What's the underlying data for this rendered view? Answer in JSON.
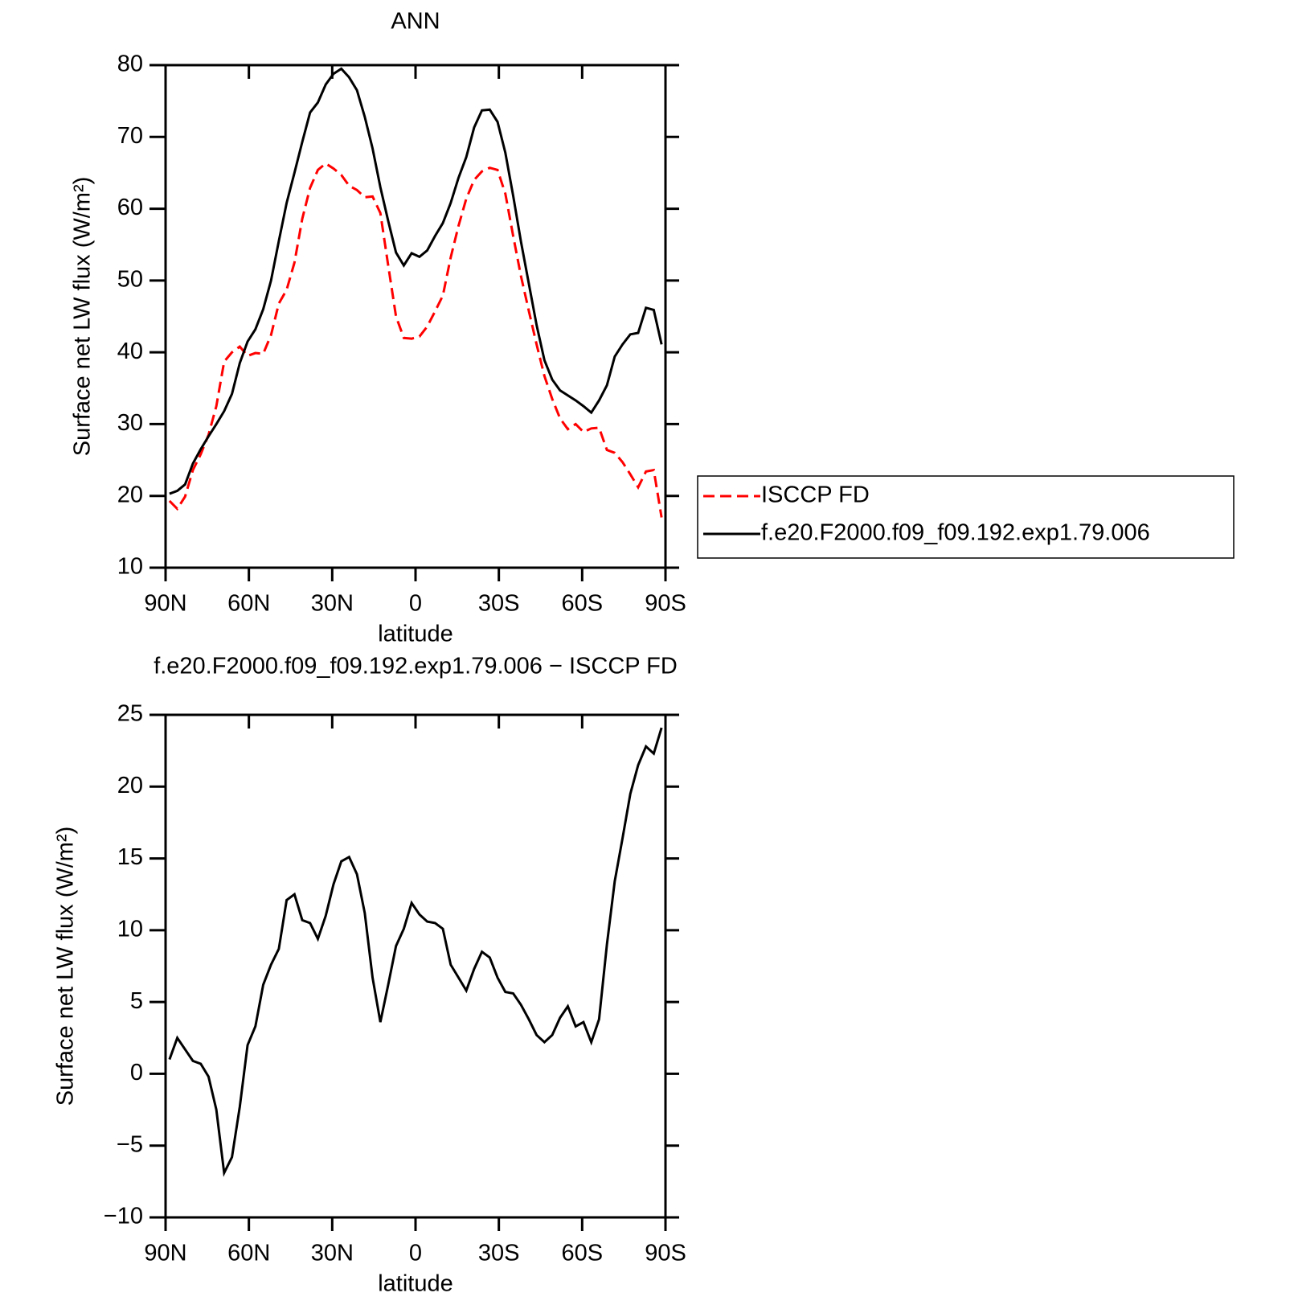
{
  "chart_data": [
    {
      "type": "line",
      "title": "ANN",
      "xlabel": "latitude",
      "ylabel": "Surface net LW flux (W/m²)",
      "x": [
        88.59,
        85.78,
        82.97,
        80.16,
        77.34,
        74.53,
        71.72,
        68.91,
        66.09,
        63.28,
        60.47,
        57.66,
        54.84,
        52.03,
        49.22,
        46.41,
        43.59,
        40.78,
        37.97,
        35.16,
        32.34,
        29.53,
        26.72,
        23.91,
        21.09,
        18.28,
        15.47,
        12.66,
        9.84,
        7.03,
        4.22,
        1.41,
        -1.41,
        -4.22,
        -7.03,
        -9.84,
        -12.66,
        -15.47,
        -18.28,
        -21.09,
        -23.91,
        -26.72,
        -29.53,
        -32.34,
        -35.16,
        -37.97,
        -40.78,
        -43.59,
        -46.41,
        -49.22,
        -52.03,
        -54.84,
        -57.66,
        -60.47,
        -63.28,
        -66.09,
        -68.91,
        -71.72,
        -74.53,
        -77.34,
        -80.16,
        -82.97,
        -85.78,
        -88.59
      ],
      "xlim": [
        90,
        -90
      ],
      "xticks": [
        {
          "value": 90,
          "label": "90N"
        },
        {
          "value": 60,
          "label": "60N"
        },
        {
          "value": 30,
          "label": "30N"
        },
        0,
        {
          "value": -30,
          "label": "30S"
        },
        {
          "value": -60,
          "label": "60S"
        },
        {
          "value": -90,
          "label": "90S"
        }
      ],
      "ylim": [
        10,
        80
      ],
      "yticks": [
        10,
        20,
        30,
        40,
        50,
        60,
        70,
        80
      ],
      "legend": "right",
      "series": [
        {
          "name": "ISCCP FD",
          "color": "#ff0000",
          "style": "dashed",
          "values": [
            19.3,
            18.2,
            19.9,
            23.6,
            25.8,
            28.5,
            32.5,
            38.7,
            40.0,
            40.8,
            39.5,
            39.9,
            39.8,
            42.4,
            46.8,
            48.7,
            52.5,
            58.6,
            62.9,
            65.4,
            66.3,
            65.6,
            64.7,
            63.2,
            62.6,
            61.6,
            61.7,
            59.4,
            52.1,
            45.0,
            42.0,
            41.9,
            42.2,
            43.6,
            45.7,
            47.9,
            53.2,
            57.6,
            61.4,
            64.0,
            65.2,
            65.7,
            65.4,
            62.1,
            56.2,
            50.6,
            45.8,
            41.1,
            36.7,
            33.5,
            30.8,
            29.3,
            30.0,
            28.9,
            29.4,
            29.5,
            26.4,
            26.0,
            24.7,
            23.0,
            21.2,
            23.4,
            23.6,
            17.0
          ]
        },
        {
          "name": "f.e20.F2000.f09_f09.192.exp1.79.006",
          "color": "#000000",
          "style": "solid",
          "values": [
            20.3,
            20.7,
            21.6,
            24.5,
            26.5,
            28.3,
            30.0,
            31.8,
            34.2,
            38.5,
            41.5,
            43.2,
            46.0,
            50.0,
            55.5,
            60.8,
            65.0,
            69.3,
            73.4,
            74.8,
            77.3,
            78.8,
            79.5,
            78.3,
            76.5,
            72.8,
            68.4,
            63.0,
            58.3,
            53.9,
            52.1,
            53.8,
            53.3,
            54.2,
            56.2,
            58.0,
            60.8,
            64.3,
            67.2,
            71.3,
            73.7,
            73.8,
            72.1,
            67.8,
            61.8,
            55.4,
            49.6,
            43.8,
            38.9,
            36.2,
            34.7,
            34.0,
            33.3,
            32.5,
            31.6,
            33.3,
            35.4,
            39.4,
            41.1,
            42.5,
            42.7,
            46.2,
            45.9,
            41.1
          ]
        }
      ]
    },
    {
      "type": "line",
      "title": "f.e20.F2000.f09_f09.192.exp1.79.006 − ISCCP FD",
      "xlabel": "latitude",
      "ylabel": "Surface net LW flux (W/m²)",
      "x": [
        88.59,
        85.78,
        82.97,
        80.16,
        77.34,
        74.53,
        71.72,
        68.91,
        66.09,
        63.28,
        60.47,
        57.66,
        54.84,
        52.03,
        49.22,
        46.41,
        43.59,
        40.78,
        37.97,
        35.16,
        32.34,
        29.53,
        26.72,
        23.91,
        21.09,
        18.28,
        15.47,
        12.66,
        9.84,
        7.03,
        4.22,
        1.41,
        -1.41,
        -4.22,
        -7.03,
        -9.84,
        -12.66,
        -15.47,
        -18.28,
        -21.09,
        -23.91,
        -26.72,
        -29.53,
        -32.34,
        -35.16,
        -37.97,
        -40.78,
        -43.59,
        -46.41,
        -49.22,
        -52.03,
        -54.84,
        -57.66,
        -60.47,
        -63.28,
        -66.09,
        -68.91,
        -71.72,
        -74.53,
        -77.34,
        -80.16,
        -82.97,
        -85.78,
        -88.59
      ],
      "xlim": [
        90,
        -90
      ],
      "xticks": [
        {
          "value": 90,
          "label": "90N"
        },
        {
          "value": 60,
          "label": "60N"
        },
        {
          "value": 30,
          "label": "30N"
        },
        0,
        {
          "value": -30,
          "label": "30S"
        },
        {
          "value": -60,
          "label": "60S"
        },
        {
          "value": -90,
          "label": "90S"
        }
      ],
      "ylim": [
        -10,
        25
      ],
      "yticks": [
        {
          "value": -10,
          "label": "−10"
        },
        {
          "value": -5,
          "label": "−5"
        },
        0,
        5,
        10,
        15,
        20,
        25
      ],
      "series": [
        {
          "color": "#000000",
          "style": "solid",
          "values": [
            1.0,
            2.5,
            1.7,
            0.9,
            0.7,
            -0.2,
            -2.5,
            -6.9,
            -5.8,
            -2.3,
            2.0,
            3.3,
            6.2,
            7.6,
            8.7,
            12.1,
            12.5,
            10.7,
            10.5,
            9.4,
            11.0,
            13.2,
            14.8,
            15.1,
            13.9,
            11.2,
            6.7,
            3.6,
            6.2,
            8.9,
            10.1,
            11.9,
            11.1,
            10.6,
            10.5,
            10.1,
            7.6,
            6.7,
            5.8,
            7.3,
            8.5,
            8.1,
            6.7,
            5.7,
            5.6,
            4.8,
            3.8,
            2.7,
            2.2,
            2.7,
            3.9,
            4.7,
            3.3,
            3.6,
            2.2,
            3.8,
            9.0,
            13.4,
            16.4,
            19.5,
            21.5,
            22.8,
            22.3,
            24.1
          ]
        }
      ]
    }
  ]
}
